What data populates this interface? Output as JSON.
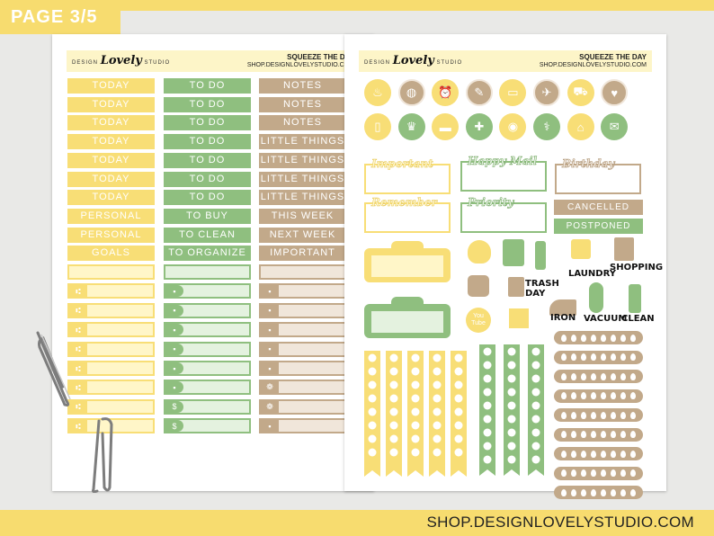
{
  "page_label": "PAGE 3/5",
  "footer_url": "SHOP.DESIGNLOVELYSTUDIO.COM",
  "sheet_header": {
    "logo_left": "DESIGN",
    "logo_script": "Lovely",
    "logo_right": "STUDIO",
    "title": "SQUEEZE THE DAY",
    "url": "SHOP.DESIGNLOVELYSTUDIO.COM"
  },
  "left_sheet": {
    "yellow_labels": [
      "TODAY",
      "TODAY",
      "TODAY",
      "TODAY",
      "TODAY",
      "TODAY",
      "TODAY",
      "PERSONAL",
      "PERSONAL",
      "GOALS"
    ],
    "green_labels": [
      "TO DO",
      "TO DO",
      "TO DO",
      "TO DO",
      "TO DO",
      "TO DO",
      "TO DO",
      "TO BUY",
      "TO CLEAN",
      "TO ORGANIZE"
    ],
    "brown_labels": [
      "NOTES",
      "NOTES",
      "NOTES",
      "LITTLE THINGS",
      "LITTLE THINGS",
      "LITTLE THINGS",
      "LITTLE THINGS",
      "THIS WEEK",
      "NEXT WEEK",
      "IMPORTANT"
    ],
    "yellow_box_icons": [
      "",
      "fork-knife-icon",
      "fork-knife-icon",
      "fork-knife-icon",
      "fork-knife-icon",
      "fork-knife-icon",
      "fork-knife-icon",
      "fork-knife-icon",
      "fork-knife-icon"
    ],
    "green_box_icons": [
      "",
      "pill-bottle-icon",
      "pill-bottle-icon",
      "pill-bottle-icon",
      "pill-bottle-icon",
      "stethoscope-icon",
      "stethoscope-icon",
      "dollar-icon",
      "dollar-icon"
    ],
    "brown_box_icons": [
      "",
      "cup-icon",
      "cup-icon",
      "bag-icon",
      "bag-icon",
      "bag-icon",
      "paw-icon",
      "paw-icon",
      "tooth-icon"
    ]
  },
  "right_sheet": {
    "circle_icons_row1": [
      "mixer-icon",
      "globe-icon",
      "alarm-clock-icon",
      "ruler-pencil-icon",
      "laptop-icon",
      "airplane-icon",
      "car-icon",
      "heartbeat-icon"
    ],
    "circle_icons_row2": [
      "tablet-icon",
      "trophy-icon",
      "credit-card-icon",
      "cross-icon",
      "pills-icon",
      "medicine-icon",
      "house-icon",
      "gift-bag-icon"
    ],
    "banners": [
      "Important",
      "Happy Mail",
      "Birthday",
      "Remember",
      "Priority"
    ],
    "ribbons": [
      "CANCELLED",
      "POSTPONED"
    ],
    "icon_words": [
      "LAUNDRY",
      "SHOPPING",
      "TRASH DAY",
      "IRON",
      "VACUUM",
      "CLEAN"
    ],
    "youtube_label": "You Tube",
    "colors": {
      "yellow": "#f8de76",
      "green": "#8fbf7f",
      "brown": "#c2a98a",
      "page_accent": "#f7dc6f"
    }
  }
}
